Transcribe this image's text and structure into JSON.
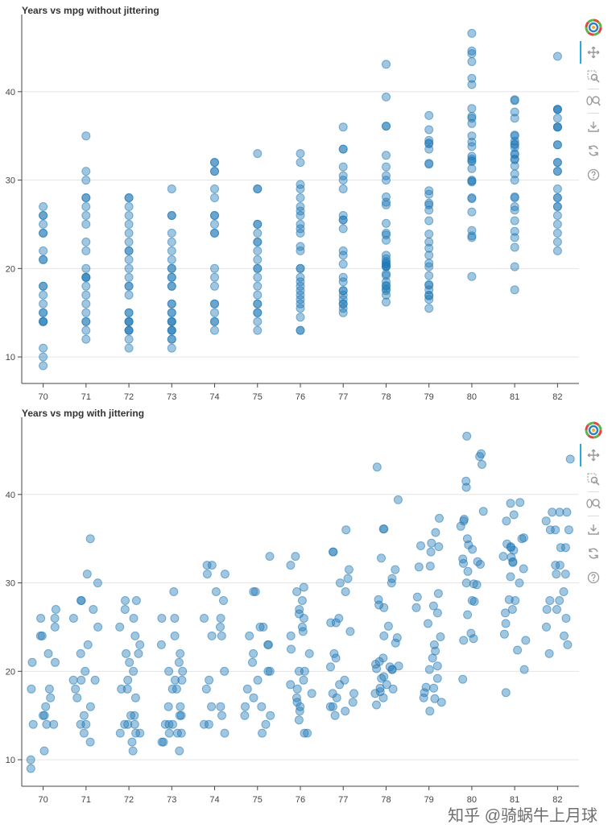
{
  "chart_data": [
    {
      "type": "scatter",
      "title": "Years vs mpg without jittering",
      "xlabel": "",
      "ylabel": "",
      "categories": [
        "70",
        "71",
        "72",
        "73",
        "74",
        "75",
        "76",
        "77",
        "78",
        "79",
        "80",
        "81",
        "82"
      ],
      "yticks": [
        "10",
        "20",
        "30",
        "40"
      ],
      "ylim": [
        7,
        48
      ],
      "jitter": false,
      "point_color": "#1f77b4",
      "points": {
        "70": [
          9,
          10,
          11,
          14,
          14,
          14,
          15,
          15,
          16,
          17,
          18,
          18,
          21,
          21,
          22,
          24,
          24,
          25,
          26,
          26,
          27
        ],
        "71": [
          12,
          13,
          14,
          14,
          15,
          16,
          17,
          18,
          19,
          19,
          19,
          20,
          22,
          23,
          25,
          26,
          27,
          28,
          28,
          30,
          31,
          35
        ],
        "72": [
          11,
          12,
          13,
          13,
          13,
          14,
          14,
          14,
          15,
          15,
          17,
          18,
          18,
          19,
          20,
          21,
          22,
          22,
          23,
          24,
          25,
          26,
          27,
          28,
          28
        ],
        "73": [
          11,
          12,
          12,
          13,
          13,
          13,
          14,
          14,
          14,
          15,
          15,
          16,
          16,
          18,
          18,
          19,
          19,
          20,
          20,
          21,
          22,
          23,
          24,
          26,
          26,
          29
        ],
        "74": [
          13,
          14,
          14,
          15,
          16,
          16,
          18,
          19,
          20,
          24,
          24,
          25,
          26,
          26,
          28,
          29,
          31,
          31,
          32,
          32
        ],
        "75": [
          13,
          14,
          15,
          15,
          16,
          16,
          17,
          18,
          19,
          20,
          20,
          21,
          22,
          23,
          23,
          24,
          25,
          25,
          29,
          29,
          33
        ],
        "76": [
          13,
          13,
          14.5,
          15.5,
          16,
          16.5,
          17,
          17.5,
          18,
          18.5,
          19,
          20,
          20,
          22,
          22.5,
          24,
          24.5,
          25,
          26,
          26.5,
          27,
          28,
          29,
          29.5,
          32,
          33
        ],
        "77": [
          15,
          15.5,
          16,
          16,
          16.5,
          17,
          17.5,
          17.5,
          18.5,
          19,
          20.5,
          21.5,
          22,
          24.5,
          25.5,
          25.5,
          26,
          29,
          30,
          30.5,
          31.5,
          33.5,
          33.5,
          36
        ],
        "78": [
          16.2,
          17,
          17.5,
          17.7,
          18,
          18.1,
          18.5,
          19.2,
          19.4,
          20.2,
          20.2,
          20.3,
          20.5,
          20.6,
          20.8,
          21.1,
          21.5,
          23.2,
          23.8,
          24,
          25.1,
          27.2,
          27.5,
          28.1,
          30,
          30.5,
          31.5,
          32.8,
          36.1,
          36.1,
          39.4,
          43.1
        ],
        "79": [
          15.5,
          16.5,
          16.9,
          17,
          17.6,
          18.1,
          18.2,
          19.2,
          20.2,
          20.6,
          21.5,
          22.3,
          23,
          23.9,
          25.4,
          26.6,
          27.2,
          27.4,
          28.4,
          28.8,
          31.8,
          31.9,
          33.5,
          34.1,
          34.2,
          34.5,
          35.7,
          37.3
        ],
        "80": [
          19.1,
          23.5,
          23.7,
          24.3,
          26.4,
          27.9,
          28,
          29.8,
          29.9,
          30,
          31.3,
          32.1,
          32.2,
          32.4,
          32.7,
          33.8,
          34.3,
          35,
          36.4,
          37,
          37.2,
          38.1,
          40.8,
          41.5,
          43.4,
          44.3,
          44.6,
          46.6
        ],
        "81": [
          17.6,
          20.2,
          22.4,
          23.5,
          24.2,
          25.4,
          26.6,
          27,
          28,
          28.1,
          30,
          30.7,
          31.6,
          32.3,
          32.4,
          32.9,
          33,
          33.7,
          34,
          34.1,
          34.4,
          35,
          35.1,
          37,
          37.7,
          39,
          39.1
        ],
        "82": [
          22,
          23,
          24,
          25,
          26,
          27,
          27,
          28,
          28,
          29,
          31,
          31,
          32,
          32,
          34,
          34,
          36,
          36,
          36,
          37,
          38,
          38,
          38,
          44
        ]
      }
    },
    {
      "type": "scatter",
      "title": "Years vs mpg with jittering",
      "xlabel": "",
      "ylabel": "",
      "categories": [
        "70",
        "71",
        "72",
        "73",
        "74",
        "75",
        "76",
        "77",
        "78",
        "79",
        "80",
        "81",
        "82"
      ],
      "yticks": [
        "10",
        "20",
        "30",
        "40"
      ],
      "ylim": [
        7,
        48
      ],
      "jitter": true,
      "jitter_width": 0.6,
      "point_color": "#1f77b4"
    }
  ],
  "toolbar": {
    "tools": [
      {
        "name": "pan-tool-icon"
      },
      {
        "name": "box-zoom-tool-icon"
      },
      {
        "name": "wheel-zoom-tool-icon"
      },
      {
        "name": "save-tool-icon"
      },
      {
        "name": "reset-tool-icon"
      },
      {
        "name": "help-tool-icon"
      }
    ],
    "accent_color": "#26aae1"
  },
  "watermark": {
    "text": "知乎 @骑蜗牛上月球"
  }
}
